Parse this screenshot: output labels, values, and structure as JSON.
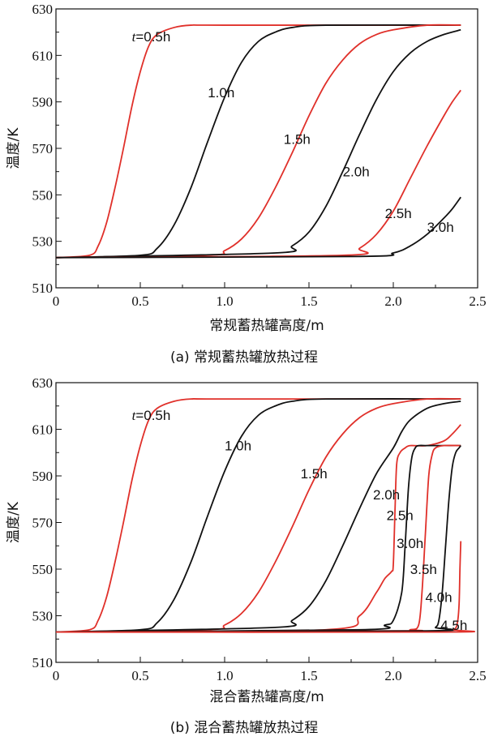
{
  "colors": {
    "red": "#e0302a",
    "black": "#111111"
  },
  "chart_data": [
    {
      "type": "line",
      "caption": "(a) 常规蓄热罐放热过程",
      "xlabel": "常规蓄热罐高度/m",
      "ylabel": "温度/K",
      "xlim": [
        0,
        2.5
      ],
      "ylim": [
        510,
        630
      ],
      "xticks": [
        "0",
        "0.5",
        "1.0",
        "1.5",
        "2.0",
        "2.5"
      ],
      "yticks": [
        "510",
        "530",
        "550",
        "570",
        "590",
        "610",
        "630"
      ],
      "series": [
        {
          "name": "t=0.5h",
          "color": "red",
          "x": [
            0,
            0.2,
            0.25,
            0.3,
            0.35,
            0.4,
            0.45,
            0.5,
            0.55,
            0.6,
            0.7,
            0.8,
            1.0,
            2.4
          ],
          "y": [
            523,
            524,
            528,
            538,
            553,
            570,
            588,
            603,
            614,
            619,
            622,
            623,
            623,
            623
          ]
        },
        {
          "name": "1.0h",
          "color": "black",
          "x": [
            0,
            0.5,
            0.6,
            0.7,
            0.8,
            0.9,
            1.0,
            1.1,
            1.2,
            1.3,
            1.4,
            1.6,
            2.4
          ],
          "y": [
            523,
            524,
            527,
            537,
            553,
            573,
            592,
            607,
            616,
            620,
            622,
            623,
            623
          ]
        },
        {
          "name": "1.5h",
          "color": "red",
          "x": [
            0,
            0.9,
            1.0,
            1.1,
            1.2,
            1.3,
            1.4,
            1.5,
            1.6,
            1.7,
            1.8,
            1.9,
            2.0,
            2.2,
            2.4
          ],
          "y": [
            523,
            524,
            526,
            531,
            540,
            553,
            568,
            584,
            598,
            608,
            615,
            619,
            621,
            623,
            623
          ]
        },
        {
          "name": "2.0h",
          "color": "black",
          "x": [
            0,
            1.3,
            1.4,
            1.5,
            1.6,
            1.7,
            1.8,
            1.9,
            2.0,
            2.1,
            2.2,
            2.3,
            2.4
          ],
          "y": [
            523,
            525,
            528,
            534,
            545,
            560,
            576,
            591,
            603,
            611,
            616,
            619,
            621
          ]
        },
        {
          "name": "2.5h",
          "color": "red",
          "x": [
            0,
            1.7,
            1.8,
            1.9,
            2.0,
            2.1,
            2.2,
            2.3,
            2.35,
            2.4
          ],
          "y": [
            523,
            524,
            527,
            533,
            543,
            557,
            571,
            584,
            590,
            595
          ]
        },
        {
          "name": "3.0h",
          "color": "black",
          "x": [
            0,
            1.8,
            2.0,
            2.1,
            2.2,
            2.3,
            2.35,
            2.4
          ],
          "y": [
            523,
            523.5,
            525,
            528,
            533,
            540,
            544,
            549
          ]
        }
      ],
      "annotations": [
        {
          "prefix": "t",
          "text": "=0.5h",
          "x": 0.45,
          "y": 616
        },
        {
          "text": "1.0h",
          "x": 0.9,
          "y": 592
        },
        {
          "text": "1.5h",
          "x": 1.35,
          "y": 572
        },
        {
          "text": "2.0h",
          "x": 1.7,
          "y": 558
        },
        {
          "text": "2.5h",
          "x": 1.95,
          "y": 540
        },
        {
          "text": "3.0h",
          "x": 2.2,
          "y": 534
        }
      ]
    },
    {
      "type": "line",
      "caption": "(b) 混合蓄热罐放热过程",
      "xlabel": "混合蓄热罐高度/m",
      "ylabel": "温度/K",
      "xlim": [
        0,
        2.5
      ],
      "ylim": [
        510,
        630
      ],
      "xticks": [
        "0",
        "0.5",
        "1.0",
        "1.5",
        "2.0",
        "2.5"
      ],
      "yticks": [
        "510",
        "530",
        "550",
        "570",
        "590",
        "610",
        "630"
      ],
      "series": [
        {
          "name": "t=0.5h",
          "color": "red",
          "x": [
            0,
            0.2,
            0.25,
            0.3,
            0.35,
            0.4,
            0.45,
            0.5,
            0.55,
            0.6,
            0.7,
            0.8,
            1.0,
            2.4
          ],
          "y": [
            523,
            524,
            528,
            538,
            553,
            570,
            588,
            603,
            614,
            619,
            622,
            623,
            623,
            623
          ]
        },
        {
          "name": "1.0h",
          "color": "black",
          "x": [
            0,
            0.5,
            0.6,
            0.7,
            0.8,
            0.9,
            1.0,
            1.1,
            1.2,
            1.3,
            1.4,
            1.6,
            2.4
          ],
          "y": [
            523,
            524,
            527,
            537,
            553,
            573,
            592,
            607,
            616,
            620,
            622,
            623,
            623
          ]
        },
        {
          "name": "1.5h",
          "color": "red",
          "x": [
            0,
            0.9,
            1.0,
            1.1,
            1.2,
            1.3,
            1.4,
            1.5,
            1.6,
            1.7,
            1.8,
            1.9,
            2.0,
            2.2,
            2.4
          ],
          "y": [
            523,
            524,
            526,
            531,
            540,
            553,
            568,
            584,
            598,
            608,
            615,
            619,
            621,
            623,
            623
          ]
        },
        {
          "name": "2.0h",
          "color": "black",
          "x": [
            0,
            1.3,
            1.4,
            1.5,
            1.6,
            1.7,
            1.8,
            1.9,
            2.0,
            2.05,
            2.1,
            2.2,
            2.3,
            2.4
          ],
          "y": [
            523,
            525,
            528,
            534,
            545,
            560,
            576,
            591,
            602,
            609,
            614,
            619,
            621,
            622
          ]
        },
        {
          "name": "2.5h",
          "color": "red",
          "x": [
            0,
            1.6,
            1.8,
            1.9,
            1.95,
            1.99,
            2.0,
            2.01,
            2.02,
            2.04,
            2.07,
            2.1,
            2.2,
            2.3,
            2.35,
            2.4
          ],
          "y": [
            523,
            524,
            530,
            540,
            546,
            549,
            552,
            575,
            595,
            600,
            602,
            603,
            603,
            605,
            608,
            612
          ]
        },
        {
          "name": "3.0h",
          "color": "black",
          "x": [
            0,
            1.8,
            1.95,
            2.0,
            2.05,
            2.07,
            2.09,
            2.11,
            2.13,
            2.15,
            2.2,
            2.3,
            2.4
          ],
          "y": [
            523,
            524,
            526,
            528,
            540,
            560,
            585,
            598,
            602,
            603,
            603,
            603,
            603
          ]
        },
        {
          "name": "3.5h",
          "color": "red",
          "x": [
            0,
            2.0,
            2.1,
            2.15,
            2.17,
            2.19,
            2.21,
            2.23,
            2.25,
            2.3,
            2.4
          ],
          "y": [
            523,
            523.5,
            524,
            526,
            540,
            565,
            590,
            599,
            602,
            603,
            603
          ]
        },
        {
          "name": "4.0h",
          "color": "black",
          "x": [
            0,
            2.2,
            2.25,
            2.27,
            2.29,
            2.31,
            2.33,
            2.35,
            2.37,
            2.39,
            2.4
          ],
          "y": [
            523,
            523.5,
            525,
            528,
            540,
            560,
            580,
            594,
            600,
            602,
            603
          ]
        },
        {
          "name": "4.5h",
          "color": "red",
          "x": [
            0,
            2.3,
            2.36,
            2.38,
            2.39,
            2.395,
            2.4
          ],
          "y": [
            523,
            523,
            524,
            527,
            535,
            550,
            562
          ]
        }
      ],
      "annotations": [
        {
          "prefix": "t",
          "text": "=0.5h",
          "x": 0.45,
          "y": 614
        },
        {
          "text": "1.0h",
          "x": 1.0,
          "y": 601
        },
        {
          "text": "1.5h",
          "x": 1.45,
          "y": 589
        },
        {
          "text": "2.0h",
          "x": 1.88,
          "y": 580
        },
        {
          "text": "2.5h",
          "x": 1.96,
          "y": 571
        },
        {
          "text": "3.0h",
          "x": 2.02,
          "y": 559
        },
        {
          "text": "3.5h",
          "x": 2.1,
          "y": 548
        },
        {
          "text": "4.0h",
          "x": 2.19,
          "y": 536
        },
        {
          "text": "4.5h",
          "x": 2.28,
          "y": 524
        }
      ]
    }
  ]
}
